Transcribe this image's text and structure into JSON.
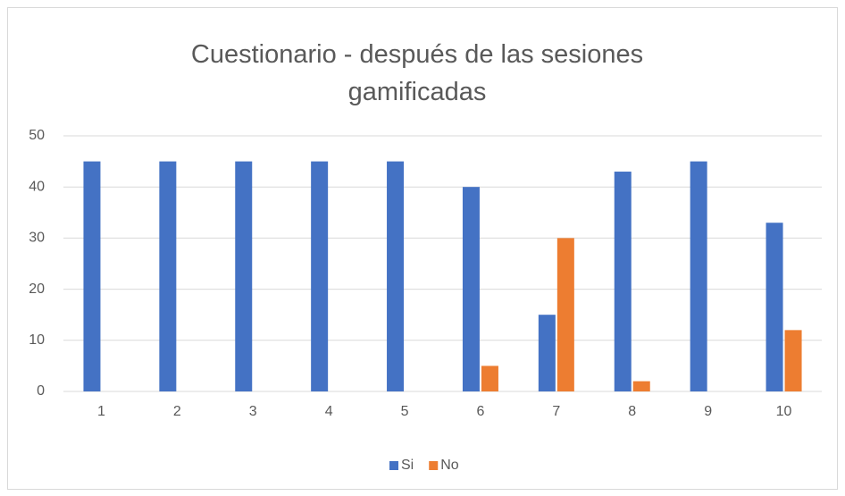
{
  "chart_data": {
    "type": "bar",
    "title": "Cuestionario - después de las sesiones gamificadas",
    "categories": [
      "1",
      "2",
      "3",
      "4",
      "5",
      "6",
      "7",
      "8",
      "9",
      "10"
    ],
    "series": [
      {
        "name": "Si",
        "color": "#4472c4",
        "values": [
          45,
          45,
          45,
          45,
          45,
          40,
          15,
          43,
          45,
          33
        ]
      },
      {
        "name": "No",
        "color": "#ed7d31",
        "values": [
          0,
          0,
          0,
          0,
          0,
          5,
          30,
          2,
          0,
          12
        ]
      }
    ],
    "ylim": [
      0,
      50
    ],
    "yticks": [
      0,
      10,
      20,
      30,
      40,
      50
    ],
    "grid": true,
    "legend": "bottom"
  }
}
